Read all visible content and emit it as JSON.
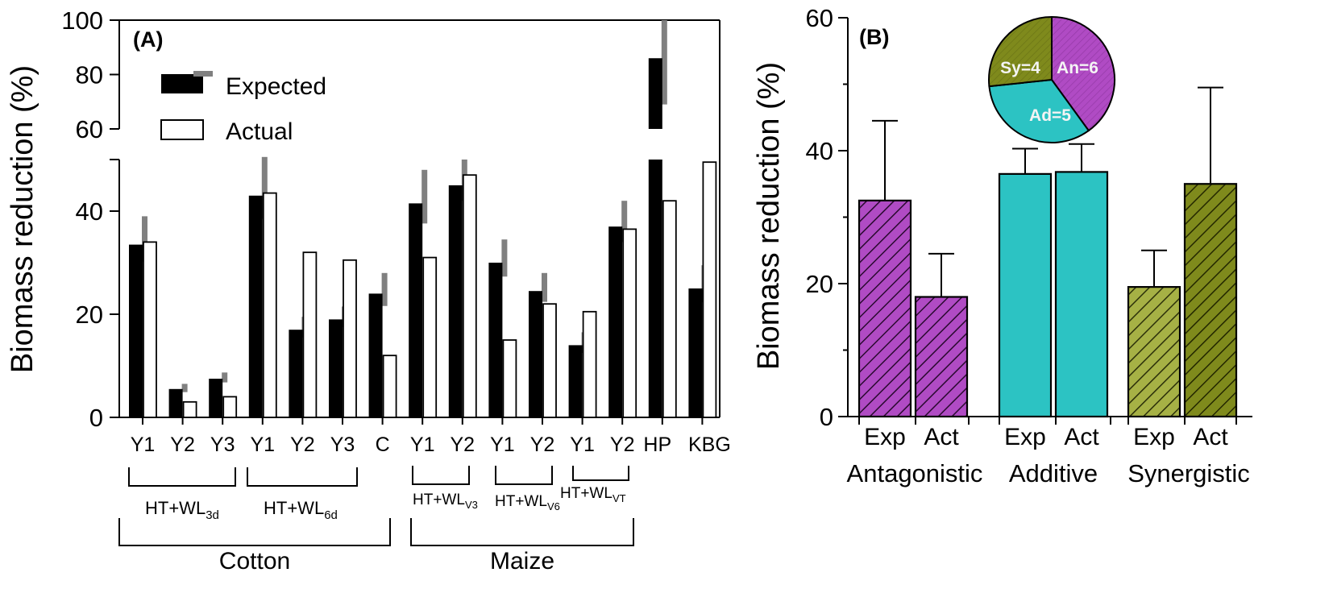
{
  "panels": {
    "a": {
      "label": "(A)",
      "ylabel": "Biomass reduction (%)"
    },
    "b": {
      "label": "(B)",
      "ylabel": "Biomass reduction (%)"
    }
  },
  "legend": {
    "expected": "Expected",
    "actual": "Actual"
  },
  "groups_a": {
    "g1": {
      "pre": "HT+WL",
      "sub": "3d"
    },
    "g2": {
      "pre": "HT+WL",
      "sub": "6d"
    },
    "g3": {
      "pre": "HT+WL",
      "sub": "V3"
    },
    "g4": {
      "pre": "HT+WL",
      "sub": "V6"
    },
    "g5": {
      "pre": "HT+WL",
      "sub": "VT"
    },
    "crop1": "Cotton",
    "crop2": "Maize"
  },
  "chart_data": [
    {
      "type": "bar",
      "title": "(A)",
      "xlabel": "",
      "ylabel": "Biomass reduction (%)",
      "y_axis_break": {
        "lower_range": [
          0,
          50
        ],
        "upper_range": [
          60,
          100
        ]
      },
      "lower_ticks": [
        0,
        20,
        40
      ],
      "upper_ticks": [
        60,
        80,
        100
      ],
      "categories": [
        "Y1",
        "Y2",
        "Y3",
        "Y1",
        "Y2",
        "Y3",
        "C",
        "Y1",
        "Y2",
        "Y1",
        "Y2",
        "Y1",
        "Y2",
        "HP",
        "KBG"
      ],
      "series": [
        {
          "name": "Expected",
          "color": "#000000",
          "values": [
            33.5,
            5.5,
            7.5,
            43,
            17,
            19,
            24,
            41.5,
            45,
            30,
            24.5,
            14,
            37,
            86,
            25
          ],
          "error": [
            5.5,
            1,
            1.2,
            7.5,
            2.5,
            2.5,
            4,
            6.5,
            5,
            4.5,
            3.5,
            2.5,
            5,
            17,
            4.5
          ]
        },
        {
          "name": "Actual",
          "color": "#ffffff",
          "values": [
            34,
            3,
            4,
            43.5,
            32,
            30.5,
            12,
            31,
            47,
            15,
            22,
            20.5,
            36.5,
            42,
            49.5
          ]
        }
      ],
      "legend_position": "top-left"
    },
    {
      "type": "bar",
      "title": "(B)",
      "xlabel": "",
      "ylabel": "Biomass reduction (%)",
      "ylim": [
        0,
        60
      ],
      "yticks": [
        0,
        20,
        40,
        60
      ],
      "categories": [
        "Exp",
        "Act",
        "Exp",
        "Act",
        "Exp",
        "Act"
      ],
      "groups": [
        "Antagonistic",
        "Additive",
        "Synergistic"
      ],
      "values": [
        32.5,
        18,
        36.5,
        36.8,
        19.5,
        35
      ],
      "error": [
        12,
        6.5,
        3.8,
        4.2,
        5.5,
        14.5
      ],
      "colors": {
        "antagonistic": "#b04bc4",
        "additive": "#2cc3c3",
        "synergistic": "#8e9a2a"
      }
    },
    {
      "type": "pie",
      "title": "",
      "slices": [
        {
          "label": "An=6",
          "value": 6,
          "color": "#b04bc4"
        },
        {
          "label": "Ad=5",
          "value": 5,
          "color": "#2cc3c3"
        },
        {
          "label": "Sy=4",
          "value": 4,
          "color": "#7f8a1c"
        }
      ]
    }
  ]
}
